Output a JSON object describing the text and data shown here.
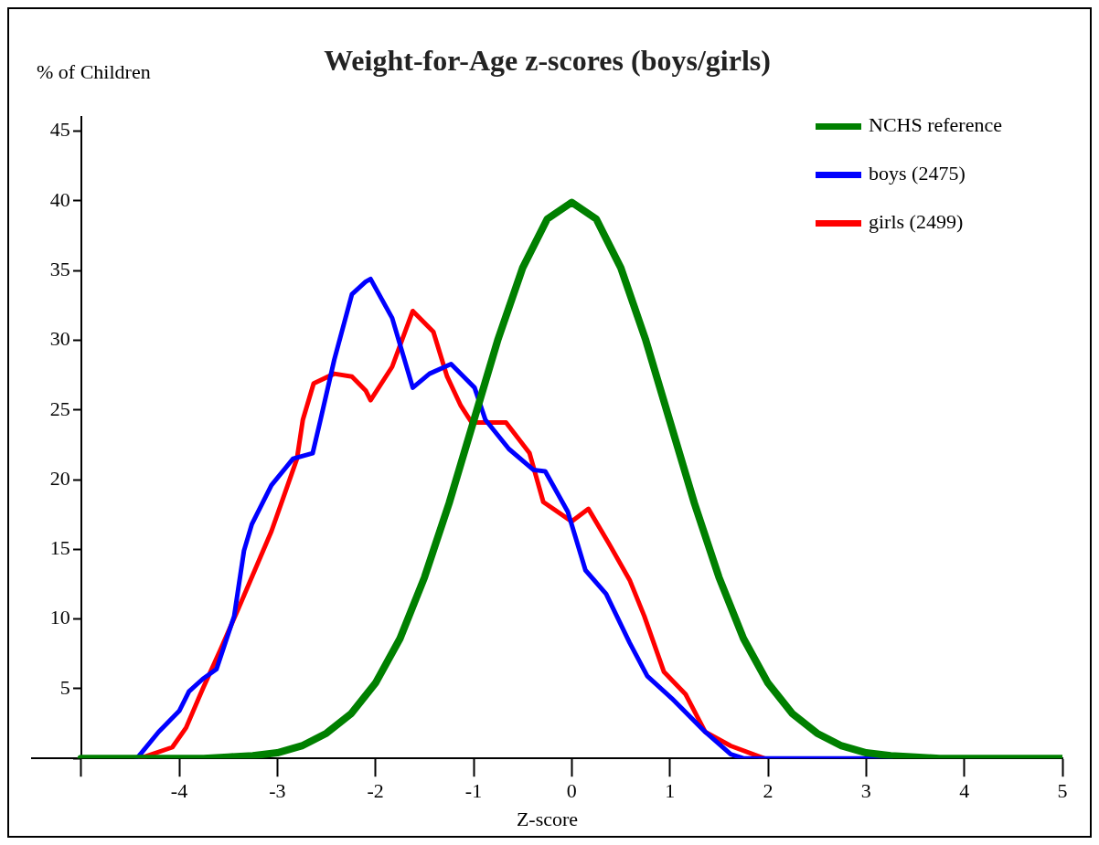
{
  "chart_data": {
    "type": "line",
    "title": "Weight-for-Age z-scores (boys/girls)",
    "xlabel": "Z-score",
    "ylabel": "% of Children",
    "xlim": [
      -5.5,
      5
    ],
    "xticks": [
      {
        "value": -5,
        "label": null
      },
      -4,
      -3,
      -2,
      -1,
      0,
      1,
      2,
      3,
      4,
      5
    ],
    "ylim": [
      0,
      46
    ],
    "yticks": [
      {
        "value": 0,
        "label": null
      },
      5,
      10,
      15,
      20,
      25,
      30,
      35,
      40,
      45
    ],
    "grid": false,
    "legend": "top right",
    "marker": "none",
    "line_style": "solid",
    "series": [
      {
        "name": "NCHS reference",
        "color": "#008000",
        "x": [
          -5,
          -4.5,
          -4,
          -3.75,
          -3.5,
          -3.25,
          -3,
          -2.75,
          -2.5,
          -2.25,
          -2,
          -1.75,
          -1.5,
          -1.25,
          -1,
          -0.75,
          -0.5,
          -0.25,
          0,
          0.25,
          0.5,
          0.75,
          1,
          1.25,
          1.5,
          1.75,
          2,
          2.25,
          2.5,
          2.75,
          3,
          3.25,
          3.5,
          3.75,
          4,
          4.5,
          5
        ],
        "values": [
          0,
          0,
          0,
          0,
          0.1,
          0.2,
          0.4,
          0.9,
          1.8,
          3.2,
          5.4,
          8.6,
          13,
          18.3,
          24.2,
          30.1,
          35.2,
          38.7,
          39.9,
          38.7,
          35.2,
          30.1,
          24.2,
          18.3,
          13,
          8.6,
          5.4,
          3.2,
          1.8,
          0.9,
          0.4,
          0.2,
          0.1,
          0,
          0,
          0,
          0
        ]
      },
      {
        "name": "boys (2475)",
        "color": "#0000ff",
        "x": [
          -4.43,
          -4.21,
          -4,
          -3.9,
          -3.76,
          -3.62,
          -3.44,
          -3.34,
          -3.26,
          -3.06,
          -2.84,
          -2.64,
          -2.56,
          -2.42,
          -2.24,
          -2.1,
          -2.05,
          -1.83,
          -1.62,
          -1.45,
          -1.23,
          -0.99,
          -0.88,
          -0.64,
          -0.39,
          -0.27,
          -0.04,
          0.14,
          0.35,
          0.59,
          0.77,
          1.02,
          1.36,
          1.62,
          1.75,
          3.25
        ],
        "values": [
          0,
          1.9,
          3.4,
          4.8,
          5.7,
          6.4,
          10.2,
          14.9,
          16.8,
          19.6,
          21.5,
          21.9,
          24.3,
          28.6,
          33.3,
          34.2,
          34.4,
          31.6,
          26.6,
          27.6,
          28.3,
          26.6,
          24.3,
          22.2,
          20.7,
          20.6,
          17.7,
          13.5,
          11.8,
          8.3,
          5.9,
          4.3,
          1.9,
          0.3,
          0,
          0
        ]
      },
      {
        "name": "girls (2499)",
        "color": "#ff0000",
        "x": [
          -4.4,
          -4.07,
          -3.93,
          -3.76,
          -3.58,
          -3.4,
          -3.23,
          -3.06,
          -2.92,
          -2.8,
          -2.74,
          -2.63,
          -2.42,
          -2.24,
          -2.1,
          -2.05,
          -1.83,
          -1.62,
          -1.41,
          -1.27,
          -1.13,
          -1.02,
          -0.67,
          -0.43,
          -0.29,
          0,
          0.17,
          0.38,
          0.59,
          0.74,
          0.94,
          1.16,
          1.36,
          1.62,
          1.96
        ],
        "values": [
          0,
          0.8,
          2.2,
          5,
          7.8,
          10.7,
          13.5,
          16.3,
          19.1,
          21.5,
          24.3,
          26.9,
          27.6,
          27.4,
          26.4,
          25.7,
          28.1,
          32.1,
          30.6,
          27.4,
          25.3,
          24.1,
          24.1,
          21.9,
          18.4,
          17,
          17.9,
          15.4,
          12.8,
          10.2,
          6.2,
          4.6,
          1.9,
          0.9,
          0
        ]
      }
    ]
  }
}
